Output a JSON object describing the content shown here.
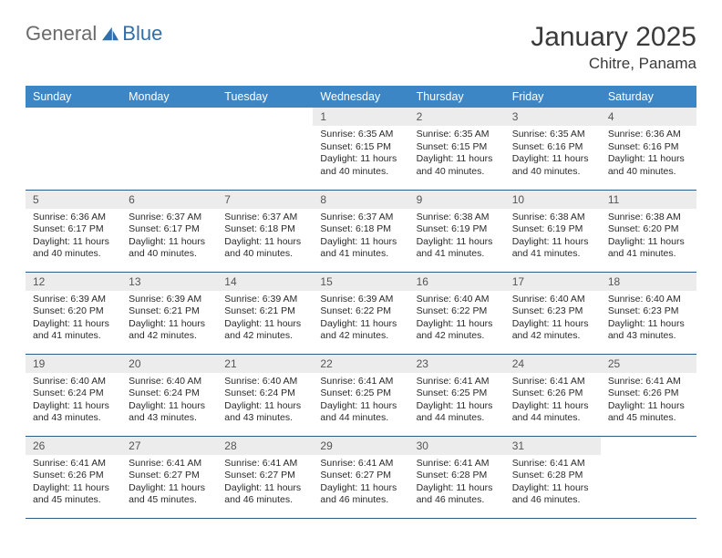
{
  "brand": {
    "word1": "General",
    "word2": "Blue"
  },
  "title": "January 2025",
  "location": "Chitre, Panama",
  "colors": {
    "header_bg": "#3d86c6",
    "header_text": "#ffffff",
    "daynum_bg": "#ececec",
    "rule": "#2f5b87",
    "logo_gray": "#6b6b6b",
    "logo_blue": "#2f6fab"
  },
  "day_headers": [
    "Sunday",
    "Monday",
    "Tuesday",
    "Wednesday",
    "Thursday",
    "Friday",
    "Saturday"
  ],
  "weeks": [
    [
      {
        "n": "",
        "sr": "",
        "ss": "",
        "dl": "",
        "empty": true
      },
      {
        "n": "",
        "sr": "",
        "ss": "",
        "dl": "",
        "empty": true
      },
      {
        "n": "",
        "sr": "",
        "ss": "",
        "dl": "",
        "empty": true
      },
      {
        "n": "1",
        "sr": "6:35 AM",
        "ss": "6:15 PM",
        "dl": "11 hours and 40 minutes."
      },
      {
        "n": "2",
        "sr": "6:35 AM",
        "ss": "6:15 PM",
        "dl": "11 hours and 40 minutes."
      },
      {
        "n": "3",
        "sr": "6:35 AM",
        "ss": "6:16 PM",
        "dl": "11 hours and 40 minutes."
      },
      {
        "n": "4",
        "sr": "6:36 AM",
        "ss": "6:16 PM",
        "dl": "11 hours and 40 minutes."
      }
    ],
    [
      {
        "n": "5",
        "sr": "6:36 AM",
        "ss": "6:17 PM",
        "dl": "11 hours and 40 minutes."
      },
      {
        "n": "6",
        "sr": "6:37 AM",
        "ss": "6:17 PM",
        "dl": "11 hours and 40 minutes."
      },
      {
        "n": "7",
        "sr": "6:37 AM",
        "ss": "6:18 PM",
        "dl": "11 hours and 40 minutes."
      },
      {
        "n": "8",
        "sr": "6:37 AM",
        "ss": "6:18 PM",
        "dl": "11 hours and 41 minutes."
      },
      {
        "n": "9",
        "sr": "6:38 AM",
        "ss": "6:19 PM",
        "dl": "11 hours and 41 minutes."
      },
      {
        "n": "10",
        "sr": "6:38 AM",
        "ss": "6:19 PM",
        "dl": "11 hours and 41 minutes."
      },
      {
        "n": "11",
        "sr": "6:38 AM",
        "ss": "6:20 PM",
        "dl": "11 hours and 41 minutes."
      }
    ],
    [
      {
        "n": "12",
        "sr": "6:39 AM",
        "ss": "6:20 PM",
        "dl": "11 hours and 41 minutes."
      },
      {
        "n": "13",
        "sr": "6:39 AM",
        "ss": "6:21 PM",
        "dl": "11 hours and 42 minutes."
      },
      {
        "n": "14",
        "sr": "6:39 AM",
        "ss": "6:21 PM",
        "dl": "11 hours and 42 minutes."
      },
      {
        "n": "15",
        "sr": "6:39 AM",
        "ss": "6:22 PM",
        "dl": "11 hours and 42 minutes."
      },
      {
        "n": "16",
        "sr": "6:40 AM",
        "ss": "6:22 PM",
        "dl": "11 hours and 42 minutes."
      },
      {
        "n": "17",
        "sr": "6:40 AM",
        "ss": "6:23 PM",
        "dl": "11 hours and 42 minutes."
      },
      {
        "n": "18",
        "sr": "6:40 AM",
        "ss": "6:23 PM",
        "dl": "11 hours and 43 minutes."
      }
    ],
    [
      {
        "n": "19",
        "sr": "6:40 AM",
        "ss": "6:24 PM",
        "dl": "11 hours and 43 minutes."
      },
      {
        "n": "20",
        "sr": "6:40 AM",
        "ss": "6:24 PM",
        "dl": "11 hours and 43 minutes."
      },
      {
        "n": "21",
        "sr": "6:40 AM",
        "ss": "6:24 PM",
        "dl": "11 hours and 43 minutes."
      },
      {
        "n": "22",
        "sr": "6:41 AM",
        "ss": "6:25 PM",
        "dl": "11 hours and 44 minutes."
      },
      {
        "n": "23",
        "sr": "6:41 AM",
        "ss": "6:25 PM",
        "dl": "11 hours and 44 minutes."
      },
      {
        "n": "24",
        "sr": "6:41 AM",
        "ss": "6:26 PM",
        "dl": "11 hours and 44 minutes."
      },
      {
        "n": "25",
        "sr": "6:41 AM",
        "ss": "6:26 PM",
        "dl": "11 hours and 45 minutes."
      }
    ],
    [
      {
        "n": "26",
        "sr": "6:41 AM",
        "ss": "6:26 PM",
        "dl": "11 hours and 45 minutes."
      },
      {
        "n": "27",
        "sr": "6:41 AM",
        "ss": "6:27 PM",
        "dl": "11 hours and 45 minutes."
      },
      {
        "n": "28",
        "sr": "6:41 AM",
        "ss": "6:27 PM",
        "dl": "11 hours and 46 minutes."
      },
      {
        "n": "29",
        "sr": "6:41 AM",
        "ss": "6:27 PM",
        "dl": "11 hours and 46 minutes."
      },
      {
        "n": "30",
        "sr": "6:41 AM",
        "ss": "6:28 PM",
        "dl": "11 hours and 46 minutes."
      },
      {
        "n": "31",
        "sr": "6:41 AM",
        "ss": "6:28 PM",
        "dl": "11 hours and 46 minutes."
      },
      {
        "n": "",
        "sr": "",
        "ss": "",
        "dl": "",
        "empty": true
      }
    ]
  ],
  "labels": {
    "sunrise": "Sunrise: ",
    "sunset": "Sunset: ",
    "daylight": "Daylight: "
  }
}
